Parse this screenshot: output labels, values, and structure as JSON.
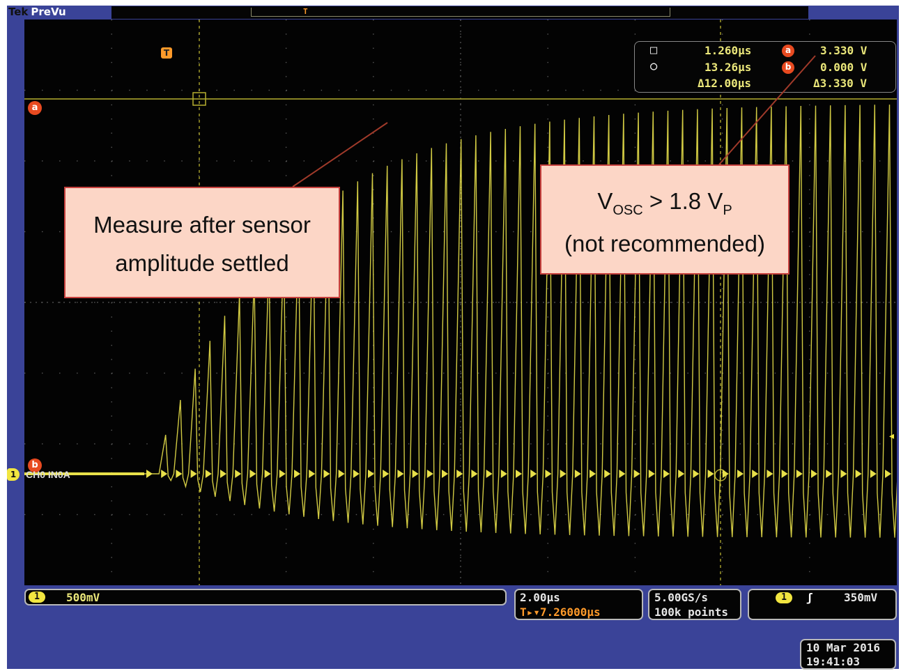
{
  "header": {
    "brand": "Tek",
    "mode": "PreVu"
  },
  "trigger_marker": "T",
  "cursors": {
    "a_badge": "a",
    "b_badge": "b",
    "readout": {
      "time1": "1.260µs",
      "time2": "13.26µs",
      "time_delta": "Δ12.00µs",
      "volt_a": "3.330 V",
      "volt_b": "0.000 V",
      "volt_delta": "Δ3.330 V",
      "cursor1_icon": "square-cursor-icon",
      "cursor2_icon": "circle-cursor-icon"
    }
  },
  "channel": {
    "number": "1",
    "label": "CH0 IN0A"
  },
  "annotations": {
    "left_line1": "Measure after sensor",
    "left_line2": "amplitude settled",
    "right_v": "V",
    "right_sub1": "OSC",
    "right_mid": " > 1.8 V",
    "right_sub2": "P",
    "right_line2": "(not recommended)"
  },
  "status": {
    "vertical_channel": "1",
    "vertical_scale": "500mV",
    "time_per_div": "2.00µs",
    "trigger_position": "T▸▾7.26000µs",
    "sample_rate": "5.00GS/s",
    "record_length": "100k points",
    "trigger_channel": "1",
    "trigger_slope": "ʃ",
    "trigger_level": "350mV",
    "date": "10 Mar 2016",
    "time": "19:41:03"
  },
  "colors": {
    "frame": "#3a4398",
    "trace": "#e8e04a",
    "cursor_a": "#b8b030",
    "note_fill": "#fcd6c6",
    "note_border": "#c8413e"
  }
}
